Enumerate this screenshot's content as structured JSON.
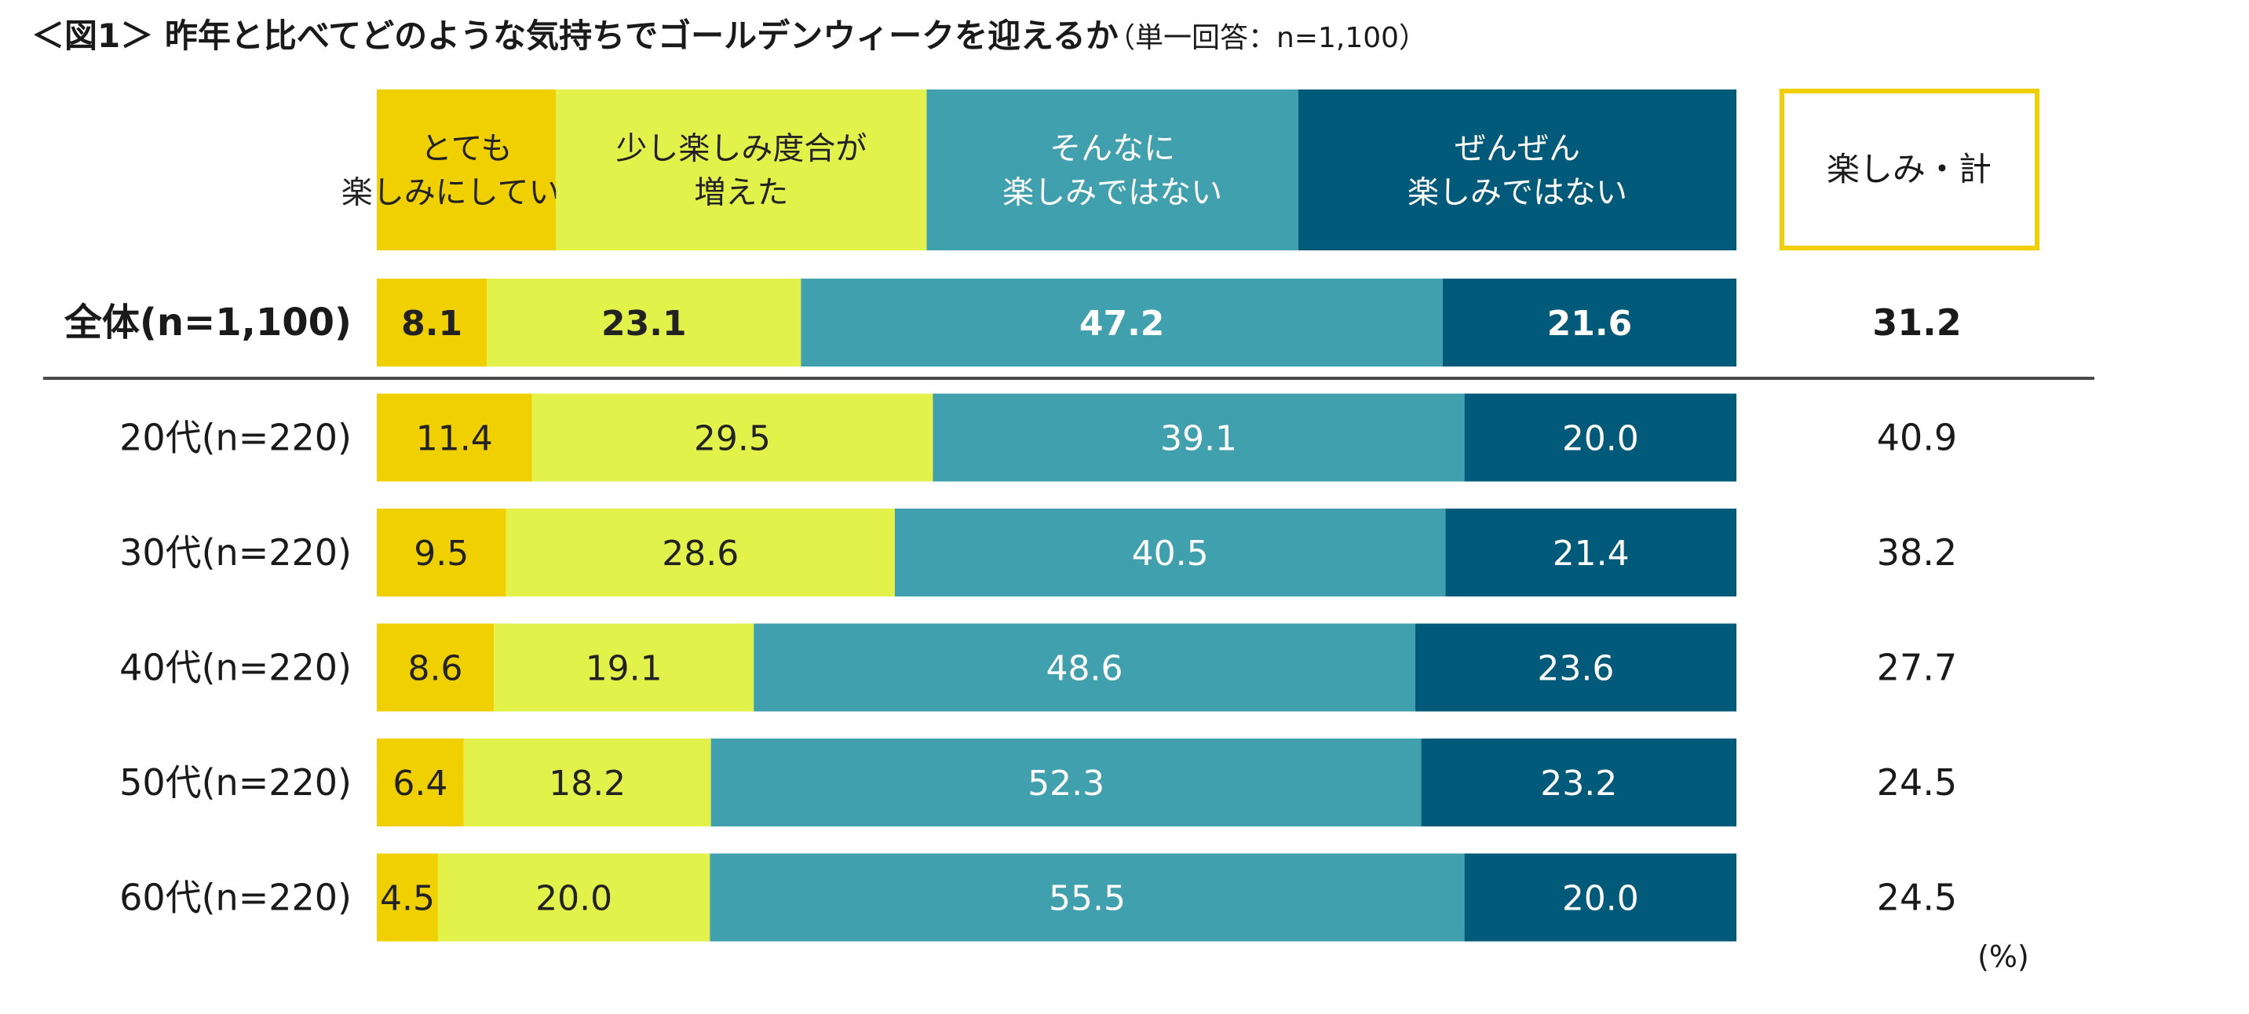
{
  "title": "＜図1＞ 昨年と比べてどのような気持ちでゴールデンウィークを迎えるか",
  "subtitle": "（単一回答：n=1,100）",
  "unit": "(%)",
  "colors": {
    "very_enjoying": "#f0d000",
    "more_enjoying": "#e3f24a",
    "not_enjoying": "#40a0ae",
    "not_at_all": "#015a7a",
    "total_border": "#f0d000",
    "divider": "#4a4a4a"
  },
  "chart_data": {
    "type": "bar",
    "orientation": "horizontal",
    "stacked": true,
    "normalized_100": true,
    "title": "＜図1＞ 昨年と比べてどのような気持ちでゴールデンウィークを迎えるか",
    "subtitle": "（単一回答：n=1,100）",
    "unit": "(%)",
    "categories": [
      "全体(n=1,100)",
      "20代(n=220)",
      "30代(n=220)",
      "40代(n=220)",
      "50代(n=220)",
      "60代(n=220)"
    ],
    "series": [
      {
        "name": "とても\n楽しみにしている",
        "color": "#f0d000",
        "text_color": "#222222",
        "values": [
          8.1,
          11.4,
          9.5,
          8.6,
          6.4,
          4.5
        ],
        "labels": [
          "8.1",
          "11.4",
          "9.5",
          "8.6",
          "6.4",
          "4.5"
        ]
      },
      {
        "name": "少し楽しみ度合が\n増えた",
        "color": "#e3f24a",
        "text_color": "#222222",
        "values": [
          23.1,
          29.5,
          28.6,
          19.1,
          18.2,
          20.0
        ],
        "labels": [
          "23.1",
          "29.5",
          "28.6",
          "19.1",
          "18.2",
          "20.0"
        ]
      },
      {
        "name": "そんなに\n楽しみではない",
        "color": "#40a0ae",
        "text_color": "#ffffff",
        "values": [
          47.2,
          39.1,
          40.5,
          48.6,
          52.3,
          55.5
        ],
        "labels": [
          "47.2",
          "39.1",
          "40.5",
          "48.6",
          "52.3",
          "55.5"
        ]
      },
      {
        "name": "ぜんぜん\n楽しみではない",
        "color": "#015a7a",
        "text_color": "#ffffff",
        "values": [
          21.6,
          20.0,
          21.4,
          23.6,
          23.2,
          20.0
        ],
        "labels": [
          "21.6",
          "20.0",
          "21.4",
          "23.6",
          "23.2",
          "20.0"
        ]
      }
    ],
    "totals": {
      "name": "楽しみ・計",
      "values": [
        31.2,
        40.9,
        38.2,
        27.7,
        24.5,
        24.5
      ],
      "labels": [
        "31.2",
        "40.9",
        "38.2",
        "27.7",
        "24.5",
        "24.5"
      ]
    },
    "xlim": [
      0,
      100
    ],
    "highlight_row": 0
  }
}
